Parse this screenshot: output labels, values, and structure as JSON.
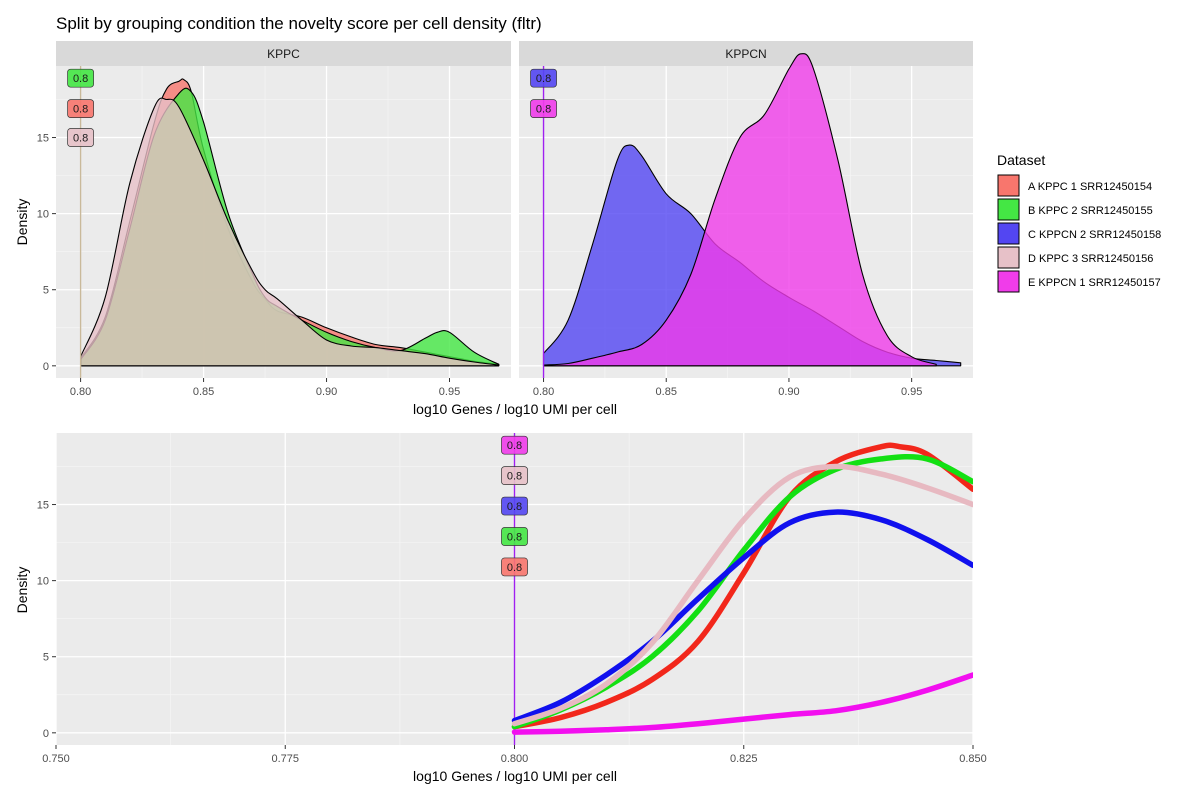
{
  "title": "Split by grouping condition the novelty score per cell density (fltr)",
  "legend": {
    "title": "Dataset",
    "position": "right",
    "entries": [
      {
        "label": "A KPPC 1 SRR12450154",
        "color": "#F8766D"
      },
      {
        "label": "B KPPC 2 SRR12450155",
        "color": "#44E744"
      },
      {
        "label": "C KPPCN 2 SRR12450158",
        "color": "#5346F2"
      },
      {
        "label": "D KPPC 3 SRR12450156",
        "color": "#E7C1C8"
      },
      {
        "label": "E KPPCN 1 SRR12450157",
        "color": "#F03CEA"
      }
    ]
  },
  "chart_data": [
    {
      "type": "area",
      "facet": "top",
      "xlabel": "log10 Genes / log10 UMI per cell",
      "ylabel": "Density",
      "xlim": [
        0.79,
        0.975
      ],
      "ylim": [
        -0.8,
        19.7
      ],
      "x_ticks": [
        "0.80",
        "0.85",
        "0.90",
        "0.95"
      ],
      "y_ticks": [
        "0",
        "5",
        "10",
        "15"
      ],
      "threshold": 0.8,
      "grid": true,
      "panels": [
        {
          "strip": "KPPC",
          "threshold_labels": [
            {
              "text": "0.8",
              "y": 18.9,
              "series": "B KPPC 2 SRR12450155"
            },
            {
              "text": "0.8",
              "y": 16.9,
              "series": "A KPPC 1 SRR12450154"
            },
            {
              "text": "0.8",
              "y": 15.0,
              "series": "D KPPC 3 SRR12450156"
            }
          ],
          "series": [
            {
              "name": "A KPPC 1 SRR12450154",
              "color": "#F8766D",
              "x": [
                0.8,
                0.81,
                0.82,
                0.83,
                0.835,
                0.84,
                0.842,
                0.845,
                0.85,
                0.86,
                0.87,
                0.875,
                0.88,
                0.89,
                0.9,
                0.91,
                0.92,
                0.93,
                0.94,
                0.95,
                0.96,
                0.97
              ],
              "y": [
                0.5,
                3.2,
                9.5,
                16.0,
                18.2,
                18.7,
                18.8,
                18.0,
                14.2,
                9.0,
                5.5,
                4.4,
                3.6,
                3.2,
                2.5,
                1.9,
                1.4,
                1.2,
                0.9,
                0.6,
                0.3,
                0.1
              ]
            },
            {
              "name": "B KPPC 2 SRR12450155",
              "color": "#44E744",
              "x": [
                0.8,
                0.81,
                0.82,
                0.83,
                0.84,
                0.845,
                0.85,
                0.86,
                0.87,
                0.875,
                0.88,
                0.89,
                0.9,
                0.91,
                0.92,
                0.93,
                0.94,
                0.945,
                0.95,
                0.96,
                0.97
              ],
              "y": [
                0.4,
                3.0,
                9.0,
                15.2,
                17.9,
                18.0,
                16.0,
                10.0,
                6.0,
                4.5,
                3.9,
                3.0,
                2.2,
                1.6,
                1.2,
                1.0,
                1.8,
                2.2,
                2.2,
                0.9,
                0.1
              ]
            },
            {
              "name": "D KPPC 3 SRR12450156",
              "color": "#E7C1C8",
              "x": [
                0.8,
                0.81,
                0.82,
                0.83,
                0.835,
                0.84,
                0.85,
                0.86,
                0.87,
                0.875,
                0.88,
                0.89,
                0.9,
                0.91,
                0.92,
                0.93,
                0.94,
                0.95,
                0.96,
                0.97
              ],
              "y": [
                0.6,
                4.5,
                12.0,
                17.0,
                17.5,
                17.0,
                13.5,
                9.5,
                6.2,
                5.0,
                4.4,
                3.0,
                1.7,
                1.3,
                1.2,
                1.0,
                0.8,
                0.5,
                0.25,
                0.05
              ]
            }
          ]
        },
        {
          "strip": "KPPCN",
          "threshold_labels": [
            {
              "text": "0.8",
              "y": 18.9,
              "series": "C KPPCN 2 SRR12450158"
            },
            {
              "text": "0.8",
              "y": 16.9,
              "series": "E KPPCN 1 SRR12450157"
            }
          ],
          "series": [
            {
              "name": "C KPPCN 2 SRR12450158",
              "color": "#5346F2",
              "x": [
                0.8,
                0.81,
                0.82,
                0.83,
                0.835,
                0.84,
                0.85,
                0.86,
                0.87,
                0.88,
                0.89,
                0.9,
                0.91,
                0.92,
                0.93,
                0.94,
                0.95,
                0.96,
                0.97
              ],
              "y": [
                0.8,
                3.0,
                8.0,
                13.5,
                14.5,
                13.8,
                11.3,
                10.0,
                8.0,
                6.8,
                5.5,
                4.5,
                3.6,
                2.6,
                1.6,
                0.9,
                0.5,
                0.35,
                0.2
              ]
            },
            {
              "name": "E KPPCN 1 SRR12450157",
              "color": "#F03CEA",
              "x": [
                0.8,
                0.81,
                0.82,
                0.83,
                0.84,
                0.85,
                0.86,
                0.87,
                0.88,
                0.89,
                0.9,
                0.905,
                0.91,
                0.92,
                0.93,
                0.94,
                0.95,
                0.96
              ],
              "y": [
                0.05,
                0.15,
                0.5,
                0.9,
                1.4,
                3.0,
                6.0,
                11.0,
                15.0,
                16.5,
                19.5,
                20.5,
                19.5,
                13.5,
                6.0,
                2.0,
                0.6,
                0.1
              ]
            }
          ]
        }
      ]
    },
    {
      "type": "line",
      "facet": "bottom",
      "xlabel": "log10 Genes / log10 UMI per cell",
      "ylabel": "Density",
      "xlim": [
        0.75,
        0.85
      ],
      "ylim": [
        -0.8,
        19.7
      ],
      "x_ticks": [
        "0.750",
        "0.775",
        "0.800",
        "0.825",
        "0.850"
      ],
      "y_ticks": [
        "0",
        "5",
        "10",
        "15"
      ],
      "threshold": 0.8,
      "grid": true,
      "threshold_labels": [
        {
          "text": "0.8",
          "y": 18.9,
          "series": "E KPPCN 1 SRR12450157"
        },
        {
          "text": "0.8",
          "y": 16.9,
          "series": "D KPPC 3 SRR12450156"
        },
        {
          "text": "0.8",
          "y": 14.9,
          "series": "C KPPCN 2 SRR12450158"
        },
        {
          "text": "0.8",
          "y": 12.9,
          "series": "B KPPC 2 SRR12450155"
        },
        {
          "text": "0.8",
          "y": 10.9,
          "series": "A KPPC 1 SRR12450154"
        }
      ],
      "series": [
        {
          "name": "A KPPC 1 SRR12450154",
          "color": "#F8766D",
          "x": [
            0.8,
            0.805,
            0.81,
            0.815,
            0.82,
            0.825,
            0.83,
            0.835,
            0.84,
            0.842,
            0.845,
            0.85
          ],
          "y": [
            0.4,
            1.0,
            2.0,
            3.5,
            6.0,
            10.5,
            15.5,
            17.8,
            18.8,
            18.8,
            18.3,
            16.0
          ]
        },
        {
          "name": "B KPPC 2 SRR12450155",
          "color": "#44E744",
          "x": [
            0.8,
            0.805,
            0.81,
            0.815,
            0.82,
            0.825,
            0.83,
            0.835,
            0.84,
            0.845,
            0.85
          ],
          "y": [
            0.4,
            1.5,
            3.0,
            5.0,
            8.0,
            12.0,
            15.5,
            17.3,
            18.0,
            18.0,
            16.5
          ]
        },
        {
          "name": "C KPPCN 2 SRR12450158",
          "color": "#5346F2",
          "x": [
            0.8,
            0.805,
            0.81,
            0.815,
            0.82,
            0.825,
            0.83,
            0.835,
            0.84,
            0.845,
            0.85
          ],
          "y": [
            0.8,
            2.0,
            3.8,
            6.0,
            8.8,
            11.5,
            13.8,
            14.5,
            14.0,
            12.7,
            11.0
          ]
        },
        {
          "name": "D KPPC 3 SRR12450156",
          "color": "#E7C1C8",
          "x": [
            0.8,
            0.805,
            0.81,
            0.815,
            0.82,
            0.825,
            0.83,
            0.835,
            0.84,
            0.845,
            0.85
          ],
          "y": [
            0.6,
            1.6,
            3.2,
            5.9,
            10.0,
            14.0,
            16.8,
            17.5,
            17.0,
            16.1,
            15.0
          ]
        },
        {
          "name": "E KPPCN 1 SRR12450157",
          "color": "#F03CEA",
          "x": [
            0.8,
            0.805,
            0.81,
            0.815,
            0.82,
            0.825,
            0.83,
            0.835,
            0.84,
            0.845,
            0.85
          ],
          "y": [
            0.05,
            0.1,
            0.2,
            0.35,
            0.6,
            0.9,
            1.2,
            1.45,
            2.0,
            2.8,
            3.8
          ]
        }
      ]
    }
  ]
}
